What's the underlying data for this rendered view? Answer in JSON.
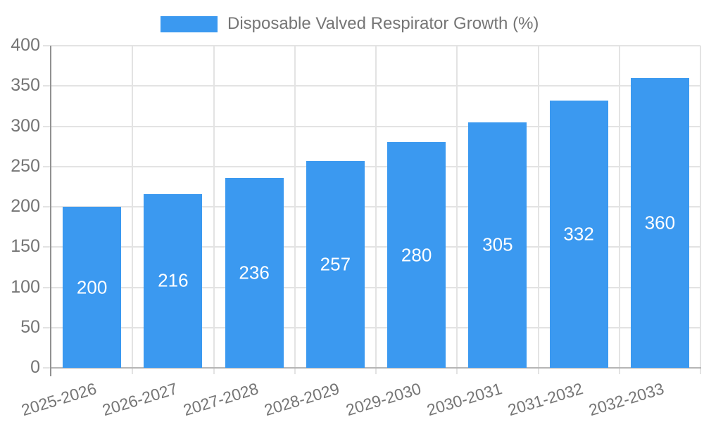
{
  "chart_data": {
    "type": "bar",
    "title": "Disposable Valved Respirator Growth (%)",
    "legend_position": "top",
    "grid": true,
    "categories": [
      "2025-2026",
      "2026-2027",
      "2027-2028",
      "2028-2029",
      "2029-2030",
      "2030-2031",
      "2031-2032",
      "2032-2033"
    ],
    "series": [
      {
        "name": "Disposable Valved Respirator Growth (%)",
        "values": [
          200,
          216,
          236,
          257,
          280,
          305,
          332,
          360
        ]
      }
    ],
    "xlabel": "",
    "ylabel": "",
    "ylim": [
      0,
      400
    ],
    "yticks": [
      0,
      50,
      100,
      150,
      200,
      250,
      300,
      350,
      400
    ],
    "bar_value_labels_visible": true
  },
  "colors": {
    "bar": "#3b99f0",
    "bar_label_text": "#ffffff",
    "axis_text": "#757575",
    "gridline": "#e3e3e3",
    "y_axis_line": "#919191",
    "x_baseline": "#b5b5b5",
    "background": "#ffffff"
  }
}
